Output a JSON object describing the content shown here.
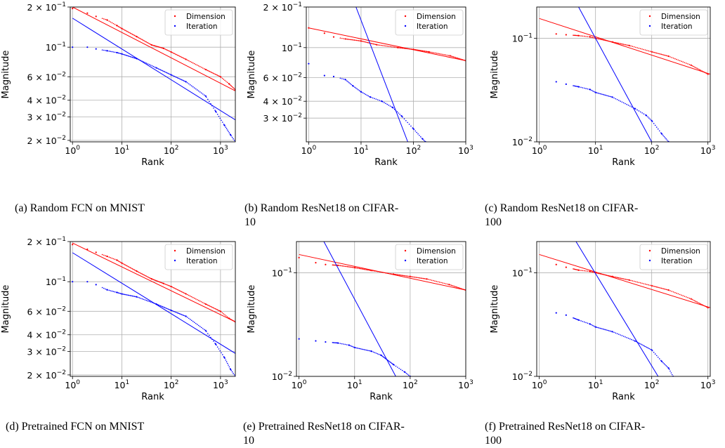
{
  "legend": {
    "dimension": "Dimension",
    "iteration": "Iteration"
  },
  "colors": {
    "dimension": "#ff0000",
    "iteration": "#0000ff",
    "grid": "#b0b0b0",
    "axis": "#000000"
  },
  "captions": [
    "(a) Random FCN on MNIST",
    "(b) Random ResNet18 on CIFAR-\n10",
    "(c) Random ResNet18 on CIFAR-\n100",
    "(d) Pretrained FCN on MNIST",
    "(e) Pretrained ResNet18 on CIFAR-\n10",
    "(f) Pretrained ResNet18 on CIFAR-\n100"
  ],
  "chart_data": [
    {
      "type": "scatter",
      "scale": "log-log",
      "grid": true,
      "legend_position": "top-right",
      "xlabel": "Rank",
      "ylabel": "Magnitude",
      "xlim": [
        0.9,
        2000
      ],
      "ylim": [
        0.0195,
        0.2
      ],
      "xticks": [
        {
          "v": 1,
          "m": "10",
          "e": "0"
        },
        {
          "v": 10,
          "m": "10",
          "e": "1"
        },
        {
          "v": 100,
          "m": "10",
          "e": "2"
        },
        {
          "v": 1000,
          "m": "10",
          "e": "3"
        }
      ],
      "yticks": [
        {
          "v": 0.02,
          "m": "2 × 10",
          "e": "−2"
        },
        {
          "v": 0.03,
          "m": "3 × 10",
          "e": "−2"
        },
        {
          "v": 0.04,
          "m": "4 × 10",
          "e": "−2"
        },
        {
          "v": 0.06,
          "m": "6 × 10",
          "e": "−2"
        },
        {
          "v": 0.1,
          "m": "10",
          "e": "−1"
        },
        {
          "v": 0.2,
          "m": "2 × 10",
          "e": "−1"
        }
      ],
      "series": [
        {
          "name": "Dimension",
          "points": [
            [
              1,
              0.195
            ],
            [
              2,
              0.18
            ],
            [
              3,
              0.17
            ],
            [
              5,
              0.16
            ],
            [
              8,
              0.145
            ],
            [
              10,
              0.138
            ],
            [
              20,
              0.12
            ],
            [
              40,
              0.104
            ],
            [
              70,
              0.098
            ],
            [
              100,
              0.092
            ],
            [
              200,
              0.081
            ],
            [
              500,
              0.068
            ],
            [
              1000,
              0.06
            ],
            [
              1500,
              0.053
            ],
            [
              2000,
              0.048
            ]
          ],
          "fit": [
            [
              1,
              0.2
            ],
            [
              2000,
              0.047
            ]
          ]
        },
        {
          "name": "Iteration",
          "points": [
            [
              1,
              0.1
            ],
            [
              2,
              0.1
            ],
            [
              3,
              0.097
            ],
            [
              5,
              0.094
            ],
            [
              8,
              0.091
            ],
            [
              10,
              0.089
            ],
            [
              20,
              0.082
            ],
            [
              50,
              0.07
            ],
            [
              100,
              0.062
            ],
            [
              200,
              0.055
            ],
            [
              500,
              0.043
            ],
            [
              800,
              0.033
            ],
            [
              1200,
              0.026
            ],
            [
              1600,
              0.022
            ],
            [
              2000,
              0.0195
            ]
          ],
          "fit": [
            [
              1,
              0.165
            ],
            [
              2000,
              0.0285
            ]
          ]
        }
      ]
    },
    {
      "type": "scatter",
      "scale": "log-log",
      "grid": true,
      "legend_position": "top-right",
      "xlabel": "Rank",
      "ylabel": "Magnitude",
      "xlim": [
        0.9,
        1000
      ],
      "ylim": [
        0.02,
        0.2
      ],
      "xticks": [
        {
          "v": 1,
          "m": "10",
          "e": "0"
        },
        {
          "v": 10,
          "m": "10",
          "e": "1"
        },
        {
          "v": 100,
          "m": "10",
          "e": "2"
        },
        {
          "v": 1000,
          "m": "10",
          "e": "3"
        }
      ],
      "yticks": [
        {
          "v": 0.03,
          "m": "3 × 10",
          "e": "−2"
        },
        {
          "v": 0.04,
          "m": "4 × 10",
          "e": "−2"
        },
        {
          "v": 0.06,
          "m": "6 × 10",
          "e": "−2"
        },
        {
          "v": 0.1,
          "m": "10",
          "e": "−1"
        },
        {
          "v": 0.2,
          "m": "2 × 10",
          "e": "−1"
        }
      ],
      "series": [
        {
          "name": "Dimension",
          "points": [
            [
              1,
              0.14
            ],
            [
              2,
              0.128
            ],
            [
              3,
              0.12
            ],
            [
              5,
              0.116
            ],
            [
              10,
              0.112
            ],
            [
              20,
              0.105
            ],
            [
              50,
              0.1
            ],
            [
              100,
              0.097
            ],
            [
              200,
              0.093
            ],
            [
              500,
              0.087
            ],
            [
              1000,
              0.08
            ]
          ],
          "fit": [
            [
              1,
              0.14
            ],
            [
              1000,
              0.08
            ]
          ]
        },
        {
          "name": "Iteration",
          "points": [
            [
              1,
              0.076
            ],
            [
              2,
              0.062
            ],
            [
              3,
              0.061
            ],
            [
              5,
              0.058
            ],
            [
              7,
              0.052
            ],
            [
              10,
              0.047
            ],
            [
              15,
              0.043
            ],
            [
              25,
              0.04
            ],
            [
              40,
              0.036
            ],
            [
              60,
              0.031
            ],
            [
              100,
              0.025
            ],
            [
              150,
              0.021
            ],
            [
              170,
              0.02
            ]
          ],
          "fit": [
            [
              8,
              0.2
            ],
            [
              78,
              0.02
            ]
          ]
        }
      ]
    },
    {
      "type": "scatter",
      "scale": "log-log",
      "grid": true,
      "legend_position": "top-right",
      "xlabel": "Rank",
      "ylabel": "Magnitude",
      "xlim": [
        0.9,
        1100
      ],
      "ylim": [
        0.01,
        0.2
      ],
      "xticks": [
        {
          "v": 1,
          "m": "10",
          "e": "0"
        },
        {
          "v": 10,
          "m": "10",
          "e": "1"
        },
        {
          "v": 100,
          "m": "10",
          "e": "2"
        },
        {
          "v": 1000,
          "m": "10",
          "e": "3"
        }
      ],
      "yticks": [
        {
          "v": 0.01,
          "m": "10",
          "e": "−2"
        },
        {
          "v": 0.1,
          "m": "10",
          "e": "−1"
        }
      ],
      "series": [
        {
          "name": "Dimension",
          "points": [
            [
              2,
              0.11
            ],
            [
              3,
              0.108
            ],
            [
              5,
              0.106
            ],
            [
              8,
              0.103
            ],
            [
              10,
              0.1
            ],
            [
              20,
              0.092
            ],
            [
              40,
              0.085
            ],
            [
              100,
              0.074
            ],
            [
              200,
              0.067
            ],
            [
              500,
              0.055
            ],
            [
              1000,
              0.045
            ]
          ],
          "fit": [
            [
              1,
              0.155
            ],
            [
              1100,
              0.045
            ]
          ]
        },
        {
          "name": "Iteration",
          "points": [
            [
              2,
              0.038
            ],
            [
              3,
              0.036
            ],
            [
              5,
              0.034
            ],
            [
              8,
              0.032
            ],
            [
              10,
              0.03
            ],
            [
              20,
              0.027
            ],
            [
              50,
              0.021
            ],
            [
              80,
              0.018
            ],
            [
              100,
              0.016
            ],
            [
              150,
              0.012
            ],
            [
              200,
              0.01
            ]
          ],
          "fit": [
            [
              5,
              0.2
            ],
            [
              100,
              0.01
            ]
          ]
        }
      ]
    },
    {
      "type": "scatter",
      "scale": "log-log",
      "grid": true,
      "legend_position": "top-right",
      "xlabel": "Rank",
      "ylabel": "Magnitude",
      "xlim": [
        0.9,
        2000
      ],
      "ylim": [
        0.0195,
        0.2
      ],
      "xticks": [
        {
          "v": 1,
          "m": "10",
          "e": "0"
        },
        {
          "v": 10,
          "m": "10",
          "e": "1"
        },
        {
          "v": 100,
          "m": "10",
          "e": "2"
        },
        {
          "v": 1000,
          "m": "10",
          "e": "3"
        }
      ],
      "yticks": [
        {
          "v": 0.02,
          "m": "2 × 10",
          "e": "−2"
        },
        {
          "v": 0.03,
          "m": "3 × 10",
          "e": "−2"
        },
        {
          "v": 0.04,
          "m": "4 × 10",
          "e": "−2"
        },
        {
          "v": 0.06,
          "m": "6 × 10",
          "e": "−2"
        },
        {
          "v": 0.1,
          "m": "10",
          "e": "−1"
        },
        {
          "v": 0.2,
          "m": "2 × 10",
          "e": "−1"
        }
      ],
      "series": [
        {
          "name": "Dimension",
          "points": [
            [
              1,
              0.19
            ],
            [
              2,
              0.175
            ],
            [
              3,
              0.166
            ],
            [
              5,
              0.155
            ],
            [
              8,
              0.145
            ],
            [
              10,
              0.138
            ],
            [
              20,
              0.12
            ],
            [
              40,
              0.105
            ],
            [
              70,
              0.097
            ],
            [
              100,
              0.092
            ],
            [
              200,
              0.081
            ],
            [
              500,
              0.068
            ],
            [
              1000,
              0.06
            ],
            [
              1500,
              0.053
            ],
            [
              2000,
              0.05
            ]
          ],
          "fit": [
            [
              1,
              0.195
            ],
            [
              2000,
              0.05
            ]
          ]
        },
        {
          "name": "Iteration",
          "points": [
            [
              1,
              0.1
            ],
            [
              2,
              0.1
            ],
            [
              3,
              0.095
            ],
            [
              5,
              0.087
            ],
            [
              8,
              0.083
            ],
            [
              10,
              0.081
            ],
            [
              20,
              0.077
            ],
            [
              50,
              0.068
            ],
            [
              100,
              0.061
            ],
            [
              200,
              0.055
            ],
            [
              500,
              0.043
            ],
            [
              800,
              0.034
            ],
            [
              1200,
              0.027
            ],
            [
              1600,
              0.022
            ],
            [
              2000,
              0.0195
            ]
          ],
          "fit": [
            [
              1,
              0.165
            ],
            [
              2000,
              0.029
            ]
          ]
        }
      ]
    },
    {
      "type": "scatter",
      "scale": "log-log",
      "grid": true,
      "legend_position": "top-right",
      "xlabel": "Rank",
      "ylabel": "Magnitude",
      "xlim": [
        0.9,
        1000
      ],
      "ylim": [
        0.01,
        0.2
      ],
      "xticks": [
        {
          "v": 1,
          "m": "10",
          "e": "0"
        },
        {
          "v": 10,
          "m": "10",
          "e": "1"
        },
        {
          "v": 100,
          "m": "10",
          "e": "2"
        },
        {
          "v": 1000,
          "m": "10",
          "e": "3"
        }
      ],
      "yticks": [
        {
          "v": 0.01,
          "m": "10",
          "e": "−2"
        },
        {
          "v": 0.1,
          "m": "10",
          "e": "−1"
        }
      ],
      "series": [
        {
          "name": "Dimension",
          "points": [
            [
              1,
              0.14
            ],
            [
              2,
              0.125
            ],
            [
              3,
              0.12
            ],
            [
              5,
              0.118
            ],
            [
              10,
              0.112
            ],
            [
              20,
              0.105
            ],
            [
              50,
              0.097
            ],
            [
              100,
              0.092
            ],
            [
              200,
              0.087
            ],
            [
              500,
              0.077
            ],
            [
              1000,
              0.068
            ]
          ],
          "fit": [
            [
              1,
              0.15
            ],
            [
              1000,
              0.068
            ]
          ]
        },
        {
          "name": "Iteration",
          "points": [
            [
              1,
              0.023
            ],
            [
              2,
              0.022
            ],
            [
              3,
              0.0215
            ],
            [
              5,
              0.021
            ],
            [
              8,
              0.02
            ],
            [
              10,
              0.019
            ],
            [
              20,
              0.0175
            ],
            [
              30,
              0.016
            ],
            [
              50,
              0.013
            ],
            [
              80,
              0.011
            ],
            [
              100,
              0.01
            ]
          ],
          "fit": [
            [
              2.8,
              0.2
            ],
            [
              55,
              0.01
            ]
          ]
        }
      ]
    },
    {
      "type": "scatter",
      "scale": "log-log",
      "grid": true,
      "legend_position": "top-right",
      "xlabel": "Rank",
      "ylabel": "Magnitude",
      "xlim": [
        0.9,
        1100
      ],
      "ylim": [
        0.01,
        0.2
      ],
      "xticks": [
        {
          "v": 1,
          "m": "10",
          "e": "0"
        },
        {
          "v": 10,
          "m": "10",
          "e": "1"
        },
        {
          "v": 100,
          "m": "10",
          "e": "2"
        },
        {
          "v": 1000,
          "m": "10",
          "e": "3"
        }
      ],
      "yticks": [
        {
          "v": 0.01,
          "m": "10",
          "e": "−2"
        },
        {
          "v": 0.1,
          "m": "10",
          "e": "−1"
        }
      ],
      "series": [
        {
          "name": "Dimension",
          "points": [
            [
              2,
              0.12
            ],
            [
              3,
              0.113
            ],
            [
              5,
              0.106
            ],
            [
              8,
              0.103
            ],
            [
              10,
              0.1
            ],
            [
              20,
              0.092
            ],
            [
              40,
              0.085
            ],
            [
              100,
              0.075
            ],
            [
              200,
              0.068
            ],
            [
              500,
              0.056
            ],
            [
              1000,
              0.046
            ]
          ],
          "fit": [
            [
              1,
              0.15
            ],
            [
              1100,
              0.046
            ]
          ]
        },
        {
          "name": "Iteration",
          "points": [
            [
              2,
              0.041
            ],
            [
              3,
              0.039
            ],
            [
              5,
              0.035
            ],
            [
              8,
              0.032
            ],
            [
              10,
              0.03
            ],
            [
              20,
              0.027
            ],
            [
              50,
              0.022
            ],
            [
              100,
              0.018
            ],
            [
              150,
              0.014
            ],
            [
              200,
              0.012
            ],
            [
              240,
              0.01
            ]
          ],
          "fit": [
            [
              4.5,
              0.2
            ],
            [
              130,
              0.01
            ]
          ]
        }
      ]
    }
  ]
}
